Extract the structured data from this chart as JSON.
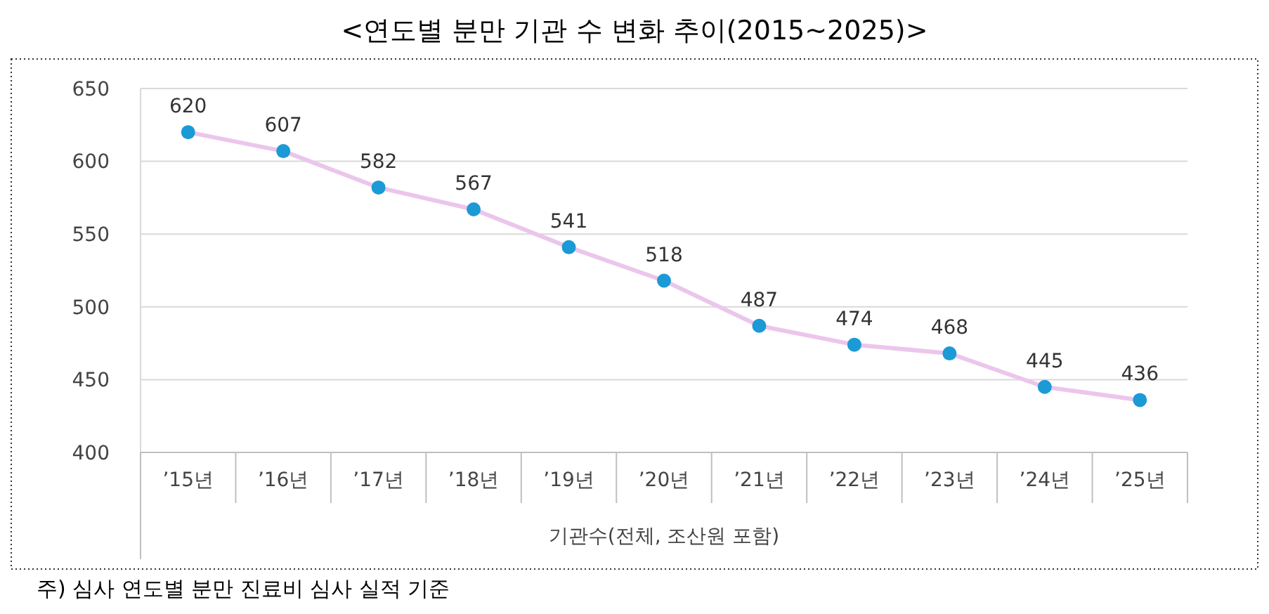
{
  "chart_data": {
    "type": "line",
    "title": "<연도별 분만 기관 수 변화 추이(2015~2025)>",
    "xlabel": "기관수(전체, 조산원 포함)",
    "annotations": [
      "주) 심사 연도별 분만 진료비 심사 실적 기준"
    ],
    "categories": [
      "’15년",
      "’16년",
      "’17년",
      "’18년",
      "’19년",
      "’20년",
      "’21년",
      "’22년",
      "’23년",
      "’24년",
      "’25년"
    ],
    "series": [
      {
        "color": "#ebc6ec",
        "colors": [
          "#1b9ad6",
          "#1b9ad6",
          "#1b9ad6",
          "#1b9ad6",
          "#1b9ad6",
          "#1b9ad6",
          "#1b9ad6",
          "#1b9ad6",
          "#1b9ad6",
          "#1b9ad6",
          "#1b9ad6"
        ],
        "values": [
          620,
          607,
          582,
          567,
          541,
          518,
          487,
          474,
          468,
          445,
          436
        ]
      }
    ],
    "ylim": [
      400,
      650
    ],
    "yticks": [
      400,
      450,
      500,
      550,
      600,
      650
    ],
    "grid": "y",
    "marker": "circle",
    "line_style": "solid",
    "data_labels": true
  }
}
